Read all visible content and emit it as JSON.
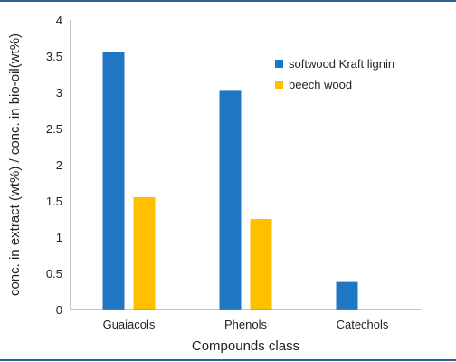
{
  "chart_data": {
    "type": "bar",
    "categories": [
      "Guaiacols",
      "Phenols",
      "Catechols"
    ],
    "series": [
      {
        "name": "softwood Kraft lignin",
        "color": "#1f77c4",
        "values": [
          3.55,
          3.02,
          0.38
        ]
      },
      {
        "name": "beech wood",
        "color": "#ffc000",
        "values": [
          1.55,
          1.25,
          0
        ]
      }
    ],
    "xlabel": "Compounds class",
    "ylabel": "conc. in extract (wt%) / conc. in bio-oil(wt%)",
    "ylim": [
      0,
      4
    ],
    "yticks": [
      "0",
      "0.5",
      "1",
      "1.5",
      "2",
      "2.5",
      "3",
      "3.5",
      "4"
    ],
    "grid": false,
    "legend_position": "top-right"
  }
}
